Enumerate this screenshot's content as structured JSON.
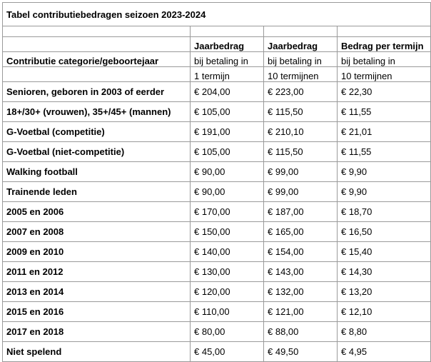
{
  "title": "Tabel contributiebedragen seizoen 2023-2024",
  "header": {
    "col1": [
      "",
      "",
      "Contributie categorie/geboortejaar",
      ""
    ],
    "col2": [
      "Jaarbedrag",
      "bij betaling in",
      "1 termijn"
    ],
    "col3": [
      "Jaarbedrag",
      "bij betaling in",
      "10 termijnen"
    ],
    "col4": [
      "Bedrag per termijn",
      "bij betaling in",
      "10 termijnen"
    ]
  },
  "rows": [
    {
      "category": "Senioren, geboren in 2003 of eerder",
      "year_1": "€ 204,00",
      "year_10": "€ 223,00",
      "per_term": "€ 22,30"
    },
    {
      "category": "18+/30+ (vrouwen), 35+/45+ (mannen)",
      "year_1": "€ 105,00",
      "year_10": "€ 115,50",
      "per_term": "€ 11,55"
    },
    {
      "category": "G-Voetbal (competitie)",
      "year_1": "€ 191,00",
      "year_10": "€ 210,10",
      "per_term": "€ 21,01"
    },
    {
      "category": "G-Voetbal (niet-competitie)",
      "year_1": "€ 105,00",
      "year_10": "€ 115,50",
      "per_term": "€ 11,55"
    },
    {
      "category": "Walking football",
      "year_1": "€ 90,00",
      "year_10": "€ 99,00",
      "per_term": "€ 9,90"
    },
    {
      "category": "Trainende leden",
      "year_1": "€ 90,00",
      "year_10": "€ 99,00",
      "per_term": "€ 9,90"
    },
    {
      "category": "2005 en 2006",
      "year_1": "€ 170,00",
      "year_10": "€ 187,00",
      "per_term": "€ 18,70"
    },
    {
      "category": "2007 en 2008",
      "year_1": "€ 150,00",
      "year_10": "€ 165,00",
      "per_term": "€ 16,50"
    },
    {
      "category": "2009 en 2010",
      "year_1": "€ 140,00",
      "year_10": "€ 154,00",
      "per_term": "€ 15,40"
    },
    {
      "category": "2011 en 2012",
      "year_1": "€ 130,00",
      "year_10": "€ 143,00",
      "per_term": "€ 14,30"
    },
    {
      "category": "2013 en 2014",
      "year_1": "€ 120,00",
      "year_10": "€ 132,00",
      "per_term": "€ 13,20"
    },
    {
      "category": "2015 en 2016",
      "year_1": "€ 110,00",
      "year_10": "€ 121,00",
      "per_term": "€ 12,10"
    },
    {
      "category": "2017 en 2018",
      "year_1": "€ 80,00",
      "year_10": "€ 88,00",
      "per_term": "€ 8,80"
    },
    {
      "category": "Niet spelend",
      "year_1": "€ 45,00",
      "year_10": "€ 49,50",
      "per_term": "€ 4,95"
    }
  ]
}
